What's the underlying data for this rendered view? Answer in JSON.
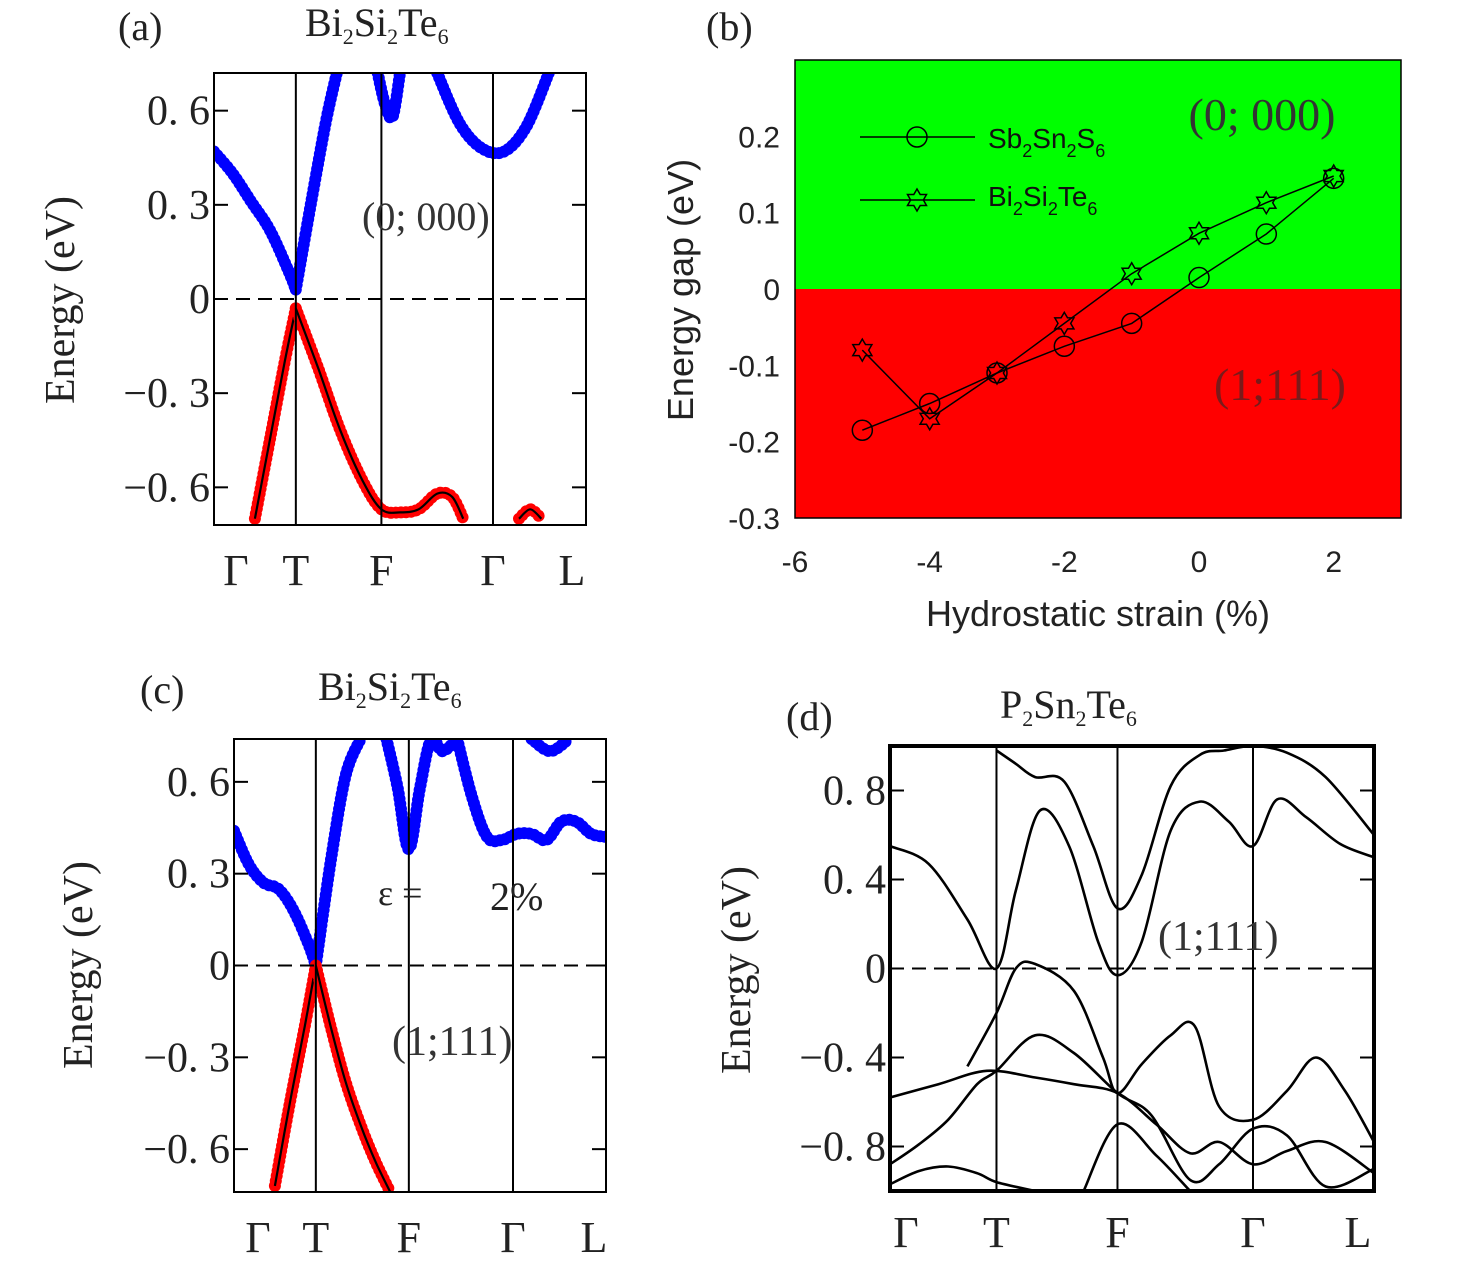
{
  "chart_data": [
    {
      "id": "a",
      "type": "line",
      "panel_label": "(a)",
      "title": {
        "base": [
          "Bi",
          "Si",
          "Te"
        ],
        "subs": [
          "2",
          "2",
          "6"
        ]
      },
      "ylabel": "Energy  (eV)",
      "ylim": [
        -0.72,
        0.72
      ],
      "yticks": [
        0.6,
        0.3,
        0,
        -0.3,
        -0.6
      ],
      "ytick_labels": [
        "0. 6",
        "0. 3",
        "0",
        "−0. 3",
        "−0. 6"
      ],
      "kpoints": [
        "Γ",
        "T",
        "F",
        "Γ",
        "L"
      ],
      "kpoint_positions": [
        0,
        0.22,
        0.45,
        0.75,
        1.0
      ],
      "fermi_level": 0,
      "annotations": [
        "(0; 000)"
      ],
      "series": [
        {
          "name": "conduction",
          "color": "#0000ff",
          "x": [
            0,
            0.05,
            0.1,
            0.15,
            0.2,
            0.22
          ],
          "y": [
            0.47,
            0.4,
            0.31,
            0.22,
            0.09,
            0.03
          ]
        },
        {
          "name": "conduction",
          "color": "#0000ff",
          "x": [
            0.22,
            0.26,
            0.3,
            0.33
          ],
          "y": [
            0.03,
            0.3,
            0.56,
            0.72
          ]
        },
        {
          "name": "conduction",
          "color": "#0000ff",
          "x": [
            0.44,
            0.46,
            0.48,
            0.5
          ],
          "y": [
            0.72,
            0.62,
            0.58,
            0.72
          ]
        },
        {
          "name": "conduction",
          "color": "#0000ff",
          "x": [
            0.6,
            0.66,
            0.72,
            0.78,
            0.84,
            0.9
          ],
          "y": [
            0.72,
            0.56,
            0.48,
            0.47,
            0.55,
            0.72
          ]
        },
        {
          "name": "valence",
          "color": "#ff0000",
          "x": [
            0.11,
            0.15,
            0.19,
            0.22
          ],
          "y": [
            -0.7,
            -0.45,
            -0.2,
            -0.03
          ]
        },
        {
          "name": "valence",
          "color": "#ff0000",
          "x": [
            0.22,
            0.28,
            0.34,
            0.4,
            0.45,
            0.5,
            0.55,
            0.6,
            0.64,
            0.67
          ],
          "y": [
            -0.03,
            -0.22,
            -0.42,
            -0.58,
            -0.67,
            -0.68,
            -0.67,
            -0.62,
            -0.63,
            -0.7
          ]
        },
        {
          "name": "valence",
          "color": "#ff0000",
          "x": [
            0.82,
            0.85,
            0.88
          ],
          "y": [
            -0.7,
            -0.67,
            -0.7
          ]
        }
      ]
    },
    {
      "id": "b",
      "type": "scatter",
      "panel_label": "(b)",
      "xlabel": "Hydrostatic strain (%)",
      "ylabel": "Energy gap (eV)",
      "xlim": [
        -6,
        3
      ],
      "ylim": [
        -0.3,
        0.3
      ],
      "xticks": [
        -6,
        -4,
        -2,
        0,
        2
      ],
      "xtick_labels": [
        "-6",
        "-4",
        "-2",
        "0",
        "2"
      ],
      "yticks": [
        0.2,
        0.1,
        0,
        -0.1,
        -0.2,
        -0.3
      ],
      "ytick_labels": [
        "0.2",
        "0.1",
        "0",
        "-0.1",
        "-0.2",
        "-0.3"
      ],
      "regions": [
        {
          "label": "(0; 000)",
          "y_range": [
            0,
            0.3
          ],
          "color": "#00ff00"
        },
        {
          "label": "(1;111)",
          "y_range": [
            -0.3,
            0
          ],
          "color": "#ff0000"
        }
      ],
      "series": [
        {
          "name": "Sb2Sn2S6",
          "legend_base": [
            "Sb",
            "Sn",
            "S"
          ],
          "legend_subs": [
            "2",
            "2",
            "6"
          ],
          "marker": "circle",
          "x": [
            -5,
            -4,
            -3,
            -2,
            -1,
            0,
            1,
            2
          ],
          "y": [
            -0.185,
            -0.15,
            -0.11,
            -0.075,
            -0.045,
            0.015,
            0.072,
            0.145
          ]
        },
        {
          "name": "Bi2Si2Te6",
          "legend_base": [
            "Bi",
            "Si",
            "Te"
          ],
          "legend_subs": [
            "2",
            "2",
            "6"
          ],
          "marker": "star",
          "x": [
            -5,
            -4,
            -3,
            -2,
            -1,
            0,
            1,
            2
          ],
          "y": [
            -0.08,
            -0.17,
            -0.11,
            -0.045,
            0.02,
            0.073,
            0.113,
            0.148
          ]
        }
      ]
    },
    {
      "id": "c",
      "type": "line",
      "panel_label": "(c)",
      "title": {
        "base": [
          "Bi",
          "Si",
          "Te"
        ],
        "subs": [
          "2",
          "2",
          "6"
        ]
      },
      "ylabel": "Energy  (eV)",
      "ylim": [
        -0.74,
        0.74
      ],
      "yticks": [
        0.6,
        0.3,
        0,
        -0.3,
        -0.6
      ],
      "ytick_labels": [
        "0. 6",
        "0. 3",
        "0",
        "−0. 3",
        "−0. 6"
      ],
      "kpoints": [
        "Γ",
        "T",
        "F",
        "Γ",
        "L"
      ],
      "kpoint_positions": [
        0,
        0.22,
        0.47,
        0.75,
        1.0
      ],
      "fermi_level": 0,
      "annotations": [
        "ε =",
        "2%",
        "(1;111)"
      ],
      "series": [
        {
          "name": "conduction",
          "color": "#0000ff",
          "x": [
            0,
            0.04,
            0.08,
            0.12,
            0.16,
            0.2,
            0.22
          ],
          "y": [
            0.44,
            0.33,
            0.27,
            0.25,
            0.18,
            0.07,
            0.0
          ]
        },
        {
          "name": "conduction",
          "color": "#0000ff",
          "x": [
            0.22,
            0.26,
            0.3,
            0.34
          ],
          "y": [
            0.0,
            0.34,
            0.62,
            0.74
          ]
        },
        {
          "name": "conduction",
          "color": "#0000ff",
          "x": [
            0.41,
            0.44,
            0.47,
            0.5,
            0.53,
            0.56,
            0.6
          ],
          "y": [
            0.74,
            0.58,
            0.38,
            0.58,
            0.74,
            0.7,
            0.74
          ]
        },
        {
          "name": "conduction",
          "color": "#0000ff",
          "x": [
            0.6,
            0.64,
            0.68,
            0.72,
            0.76,
            0.8,
            0.84,
            0.88,
            0.92,
            0.96,
            1.0
          ],
          "y": [
            0.74,
            0.55,
            0.42,
            0.41,
            0.43,
            0.43,
            0.41,
            0.47,
            0.47,
            0.43,
            0.42
          ]
        },
        {
          "name": "conduction",
          "color": "#0000ff",
          "x": [
            0.8,
            0.85,
            0.9
          ],
          "y": [
            0.74,
            0.7,
            0.74
          ]
        },
        {
          "name": "valence",
          "color": "#ff0000",
          "x": [
            0.11,
            0.15,
            0.19,
            0.22
          ],
          "y": [
            -0.72,
            -0.45,
            -0.2,
            0.0
          ]
        },
        {
          "name": "valence",
          "color": "#ff0000",
          "x": [
            0.22,
            0.26,
            0.3,
            0.34,
            0.38,
            0.42
          ],
          "y": [
            0.0,
            -0.2,
            -0.38,
            -0.52,
            -0.64,
            -0.74
          ]
        }
      ]
    },
    {
      "id": "d",
      "type": "line",
      "panel_label": "(d)",
      "title": {
        "base": [
          "P",
          "Sn",
          "Te"
        ],
        "subs": [
          "2",
          "2",
          "6"
        ]
      },
      "ylabel": "Energy  (eV)",
      "ylim": [
        -1.0,
        1.0
      ],
      "yticks": [
        0.8,
        0.4,
        0,
        -0.4,
        -0.8
      ],
      "ytick_labels": [
        "0. 8",
        "0. 4",
        "0",
        "−0. 4",
        "−0. 8"
      ],
      "kpoints": [
        "Γ",
        "T",
        "F",
        "Γ",
        "L"
      ],
      "kpoint_positions": [
        0,
        0.22,
        0.47,
        0.75,
        1.0
      ],
      "fermi_level": 0,
      "annotations": [
        "(1;111)"
      ],
      "series": [
        {
          "name": "band",
          "color": "#000000",
          "x": [
            0,
            0.08,
            0.16,
            0.22,
            0.26,
            0.31,
            0.37,
            0.43,
            0.47,
            0.52,
            0.58,
            0.64,
            0.7,
            0.75,
            0.8,
            0.86,
            0.93,
            1.0
          ],
          "y": [
            0.55,
            0.47,
            0.22,
            0.0,
            0.35,
            0.71,
            0.55,
            0.12,
            -0.03,
            0.12,
            0.62,
            0.75,
            0.66,
            0.55,
            0.76,
            0.68,
            0.56,
            0.5
          ]
        },
        {
          "name": "band",
          "color": "#000000",
          "x": [
            0.22,
            0.26,
            0.3,
            0.36,
            0.42,
            0.47,
            0.52,
            0.58,
            0.64,
            0.69,
            0.75,
            0.82,
            0.9,
            1.0
          ],
          "y": [
            0.98,
            0.92,
            0.86,
            0.84,
            0.55,
            0.27,
            0.42,
            0.82,
            0.96,
            0.98,
            1.0,
            0.97,
            0.86,
            0.6
          ]
        },
        {
          "name": "band",
          "color": "#000000",
          "x": [
            0.16,
            0.22,
            0.26,
            0.3,
            0.38,
            0.44,
            0.47,
            0.52,
            0.58,
            0.63,
            0.68,
            0.75,
            0.82,
            0.88,
            0.94,
            1.0
          ],
          "y": [
            -0.44,
            -0.2,
            0.0,
            0.02,
            -0.1,
            -0.4,
            -0.56,
            -0.43,
            -0.3,
            -0.26,
            -0.62,
            -0.68,
            -0.55,
            -0.4,
            -0.55,
            -0.78
          ]
        },
        {
          "name": "band",
          "color": "#000000",
          "x": [
            0,
            0.1,
            0.2,
            0.3,
            0.38,
            0.47,
            0.55,
            0.62,
            0.68,
            0.75,
            0.82,
            0.9,
            1.0
          ],
          "y": [
            -0.58,
            -0.52,
            -0.46,
            -0.49,
            -0.52,
            -0.56,
            -0.7,
            -0.83,
            -0.78,
            -0.88,
            -0.82,
            -0.78,
            -0.92
          ]
        },
        {
          "name": "band",
          "color": "#000000",
          "x": [
            0,
            0.06,
            0.12,
            0.18,
            0.22,
            0.3,
            0.38,
            0.47,
            0.54,
            0.62,
            0.68,
            0.75,
            0.82,
            0.9,
            1.0
          ],
          "y": [
            -0.88,
            -0.79,
            -0.68,
            -0.52,
            -0.46,
            -0.3,
            -0.38,
            -0.56,
            -0.66,
            -0.95,
            -0.88,
            -0.72,
            -0.75,
            -0.98,
            -0.9
          ]
        },
        {
          "name": "band",
          "color": "#000000",
          "x": [
            0,
            0.06,
            0.12,
            0.18,
            0.22,
            0.3
          ],
          "y": [
            -0.97,
            -0.91,
            -0.89,
            -0.92,
            -0.96,
            -1.0
          ]
        },
        {
          "name": "band",
          "color": "#000000",
          "x": [
            0.4,
            0.47,
            0.55,
            0.62
          ],
          "y": [
            -1.0,
            -0.7,
            -0.84,
            -1.0
          ]
        }
      ]
    }
  ]
}
